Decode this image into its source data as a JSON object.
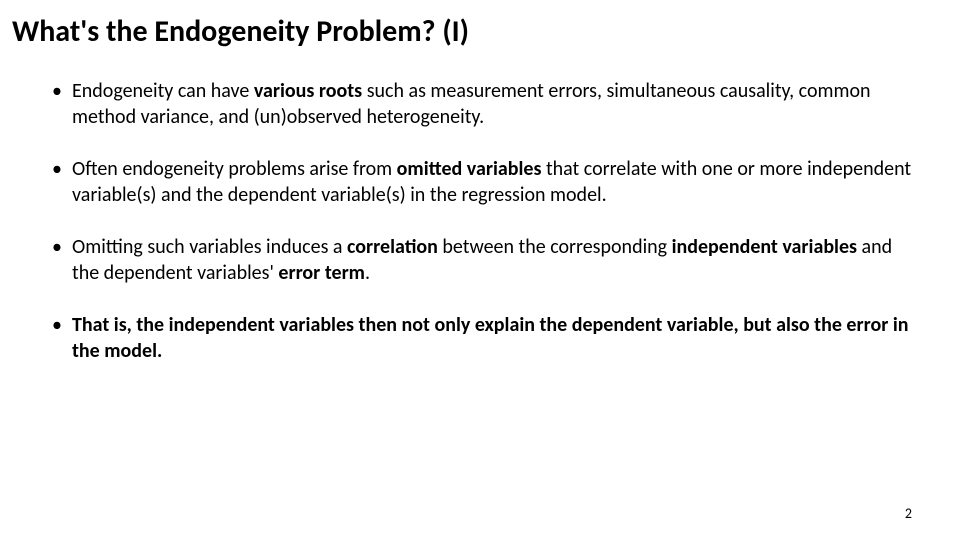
{
  "title": "What's the Endogeneity Problem? (I)",
  "bullets": [
    {
      "parts": [
        {
          "text": "Endogeneity can have ",
          "bold": false
        },
        {
          "text": "various roots",
          "bold": true
        },
        {
          "text": " such as measurement errors, simultaneous causality, common method variance, and (un)observed heterogeneity.",
          "bold": false
        }
      ]
    },
    {
      "parts": [
        {
          "text": "Often endogeneity problems arise from ",
          "bold": false
        },
        {
          "text": "omitted variables",
          "bold": true
        },
        {
          "text": " that correlate with one or more independent variable(s) and the dependent variable(s) in the regression model.",
          "bold": false
        }
      ]
    },
    {
      "parts": [
        {
          "text": "Omitting such variables induces a ",
          "bold": false
        },
        {
          "text": "correlation",
          "bold": true
        },
        {
          "text": " between the corresponding ",
          "bold": false
        },
        {
          "text": "independent variables",
          "bold": true
        },
        {
          "text": " and the dependent variables' ",
          "bold": false
        },
        {
          "text": "error term",
          "bold": true
        },
        {
          "text": ".",
          "bold": false
        }
      ]
    },
    {
      "parts": [
        {
          "text": "That is, the independent variables then not only explain the dependent variable, but also the error in the model.",
          "bold": true
        }
      ]
    }
  ],
  "page_number": "2",
  "styles": {
    "background_color": "#ffffff",
    "text_color": "#000000",
    "title_fontsize": 30,
    "body_fontsize": 20,
    "page_number_fontsize": 14
  }
}
